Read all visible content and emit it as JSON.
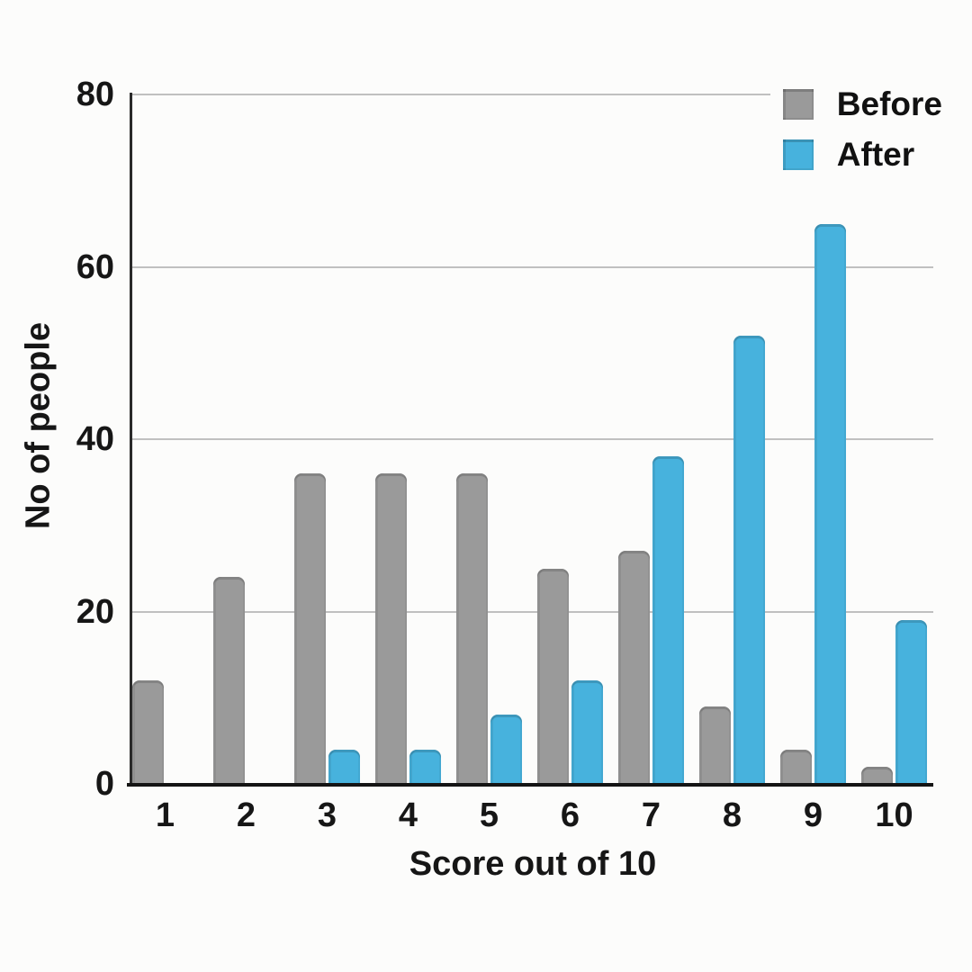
{
  "chart_data": {
    "type": "bar",
    "title": "",
    "categories": [
      "1",
      "2",
      "3",
      "4",
      "5",
      "6",
      "7",
      "8",
      "9",
      "10"
    ],
    "series": [
      {
        "name": "Before",
        "color": "#9a9a9a",
        "values": [
          12,
          24,
          36,
          36,
          36,
          25,
          27,
          9,
          4,
          2
        ]
      },
      {
        "name": "After",
        "color": "#47b2dd",
        "values": [
          0,
          0,
          4,
          4,
          8,
          12,
          38,
          52,
          65,
          19
        ]
      }
    ],
    "xlabel": "Score out of 10",
    "ylabel": "No of people",
    "ylim": [
      0,
      80
    ],
    "yticks": [
      0,
      20,
      40,
      60,
      80
    ],
    "grid": true,
    "legend_position": "top-right",
    "colors": {
      "background": "#fcfcfb",
      "gridline": "#c0c0c0",
      "axis": "#141414",
      "text": "#161616"
    }
  }
}
